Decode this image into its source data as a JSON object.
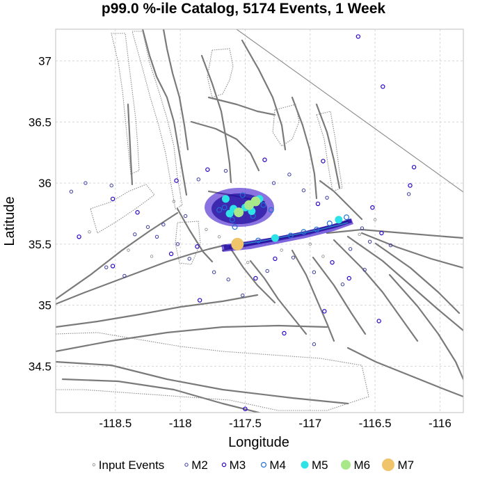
{
  "chart_data": {
    "type": "scatter",
    "title": "p99.0 %-ile Catalog, 5174 Events, 1 Week",
    "xlabel": "Longitude",
    "ylabel": "Latitude",
    "xlim": [
      -118.96,
      -115.82
    ],
    "ylim": [
      34.12,
      37.26
    ],
    "x_ticks": [
      -118.5,
      -118,
      -117.5,
      -117,
      -116.5,
      -116
    ],
    "x_tick_labels": [
      "-118.5",
      "-118",
      "-117.5",
      "-117",
      "-116.5",
      "-116"
    ],
    "y_ticks": [
      34.5,
      35,
      35.5,
      36,
      36.5,
      37
    ],
    "y_tick_labels": [
      "34.5",
      "35",
      "35.5",
      "36",
      "36.5",
      "37"
    ],
    "grid": true,
    "legend_position": "bottom",
    "legend": [
      "Input Events",
      "M2",
      "M3",
      "M4",
      "M5",
      "M6",
      "M7"
    ],
    "colors": {
      "input": "#888888",
      "M2": "#3a3aa0",
      "M3": "#2a00c8",
      "M4": "#1f6fd8",
      "M5": "#2ee3e6",
      "M6": "#a8e88a",
      "M7": "#efc46a",
      "fault": "#7a7a7a"
    },
    "series": [
      {
        "name": "M7",
        "points": [
          [
            -117.56,
            35.5
          ]
        ]
      },
      {
        "name": "M6",
        "points": [
          [
            -117.47,
            35.82
          ],
          [
            -117.42,
            35.85
          ],
          [
            -117.55,
            35.76
          ]
        ]
      },
      {
        "name": "M5",
        "points": [
          [
            -117.5,
            35.8
          ],
          [
            -117.39,
            35.87
          ],
          [
            -117.62,
            35.75
          ],
          [
            -117.59,
            35.79
          ],
          [
            -117.65,
            35.87
          ],
          [
            -116.78,
            35.7
          ],
          [
            -117.27,
            35.55
          ],
          [
            -117.45,
            35.77
          ]
        ]
      },
      {
        "name": "M4",
        "points": [
          [
            -117.7,
            35.78
          ],
          [
            -117.44,
            35.73
          ],
          [
            -117.36,
            35.82
          ],
          [
            -117.6,
            35.7
          ],
          [
            -116.95,
            35.62
          ],
          [
            -117.15,
            35.57
          ],
          [
            -116.85,
            35.67
          ],
          [
            -117.52,
            35.9
          ],
          [
            -117.66,
            35.8
          ],
          [
            -117.3,
            35.78
          ],
          [
            -117.58,
            35.64
          ],
          [
            -116.72,
            35.72
          ],
          [
            -117.05,
            35.6
          ],
          [
            -117.4,
            35.53
          ]
        ]
      },
      {
        "name": "M3",
        "points": [
          [
            -116.63,
            37.2
          ],
          [
            -116.44,
            36.79
          ],
          [
            -116.2,
            36.13
          ],
          [
            -116.23,
            35.98
          ],
          [
            -116.52,
            35.8
          ],
          [
            -116.45,
            35.59
          ],
          [
            -118.33,
            35.76
          ],
          [
            -118.78,
            35.56
          ],
          [
            -118.52,
            35.87
          ],
          [
            -118.07,
            35.42
          ],
          [
            -117.87,
            35.48
          ],
          [
            -117.42,
            35.22
          ],
          [
            -117.27,
            35.38
          ],
          [
            -116.83,
            35.35
          ],
          [
            -116.7,
            35.22
          ],
          [
            -117.2,
            34.77
          ],
          [
            -116.89,
            34.95
          ],
          [
            -116.47,
            34.87
          ],
          [
            -117.85,
            35.04
          ],
          [
            -118.03,
            36.02
          ],
          [
            -117.35,
            36.19
          ],
          [
            -116.9,
            36.18
          ],
          [
            -117.79,
            36.11
          ],
          [
            -116.94,
            35.83
          ],
          [
            -117.5,
            34.15
          ],
          [
            -118.52,
            35.32
          ]
        ]
      },
      {
        "name": "M2",
        "points": [
          [
            -118.84,
            35.93
          ],
          [
            -118.73,
            36.0
          ],
          [
            -118.53,
            35.98
          ],
          [
            -118.57,
            35.31
          ],
          [
            -118.43,
            35.24
          ],
          [
            -118.35,
            35.58
          ],
          [
            -118.25,
            35.64
          ],
          [
            -118.13,
            35.66
          ],
          [
            -118.02,
            35.5
          ],
          [
            -117.93,
            35.38
          ],
          [
            -117.74,
            35.27
          ],
          [
            -117.63,
            35.21
          ],
          [
            -117.52,
            35.08
          ],
          [
            -117.33,
            35.28
          ],
          [
            -117.13,
            35.39
          ],
          [
            -116.97,
            35.27
          ],
          [
            -116.75,
            35.17
          ],
          [
            -116.58,
            35.29
          ],
          [
            -116.69,
            35.46
          ],
          [
            -116.54,
            35.52
          ],
          [
            -116.6,
            35.63
          ],
          [
            -116.87,
            35.88
          ],
          [
            -117.05,
            35.94
          ],
          [
            -117.16,
            36.07
          ],
          [
            -117.28,
            36.0
          ],
          [
            -117.65,
            36.1
          ],
          [
            -117.86,
            36.03
          ],
          [
            -117.96,
            35.73
          ],
          [
            -118.18,
            35.56
          ],
          [
            -116.97,
            34.68
          ],
          [
            -116.24,
            35.91
          ],
          [
            -116.38,
            35.49
          ]
        ]
      },
      {
        "name": "Input Events",
        "points": [
          [
            -118.7,
            35.6
          ],
          [
            -118.4,
            35.45
          ],
          [
            -118.05,
            35.85
          ],
          [
            -117.8,
            35.62
          ],
          [
            -117.22,
            35.45
          ],
          [
            -117.0,
            35.5
          ],
          [
            -116.9,
            35.4
          ],
          [
            -116.62,
            35.58
          ],
          [
            -117.48,
            35.35
          ],
          [
            -117.7,
            35.56
          ],
          [
            -118.22,
            35.4
          ],
          [
            -116.5,
            35.7
          ]
        ]
      }
    ]
  }
}
